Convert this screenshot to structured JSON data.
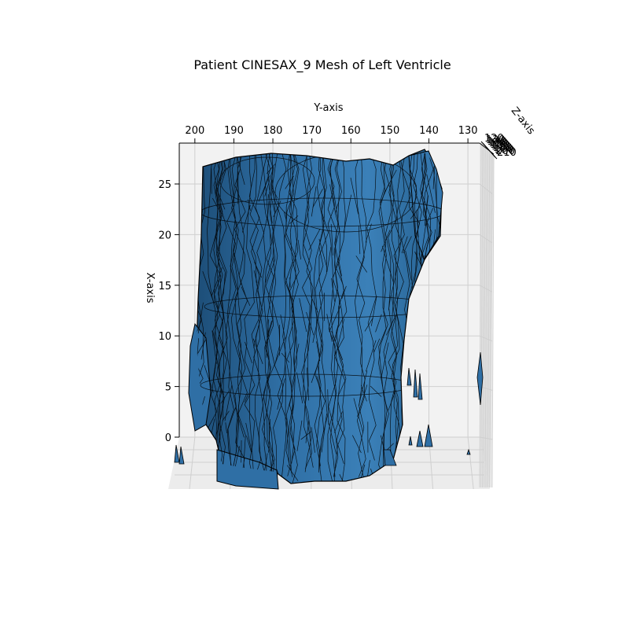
{
  "chart_data": {
    "type": "mesh3d",
    "title": "Patient CINESAX_9 Mesh of Left Ventricle",
    "xlabel": "X-axis",
    "ylabel": "Y-axis",
    "zlabel": "Z-axis",
    "x_ticks": [
      0,
      5,
      10,
      15,
      20,
      25
    ],
    "y_ticks": [
      200,
      190,
      180,
      170,
      160,
      150,
      140,
      130
    ],
    "z_ticks": [
      120,
      130,
      140,
      150,
      160,
      170,
      180,
      190,
      200,
      210
    ],
    "xlim": [
      -3,
      28
    ],
    "ylim": [
      204,
      127
    ],
    "zlim": [
      118,
      212
    ],
    "mesh_color": "#2f6fa5",
    "edge_color": "#000000",
    "pane_color": "#f2f2f2",
    "grid": true
  }
}
